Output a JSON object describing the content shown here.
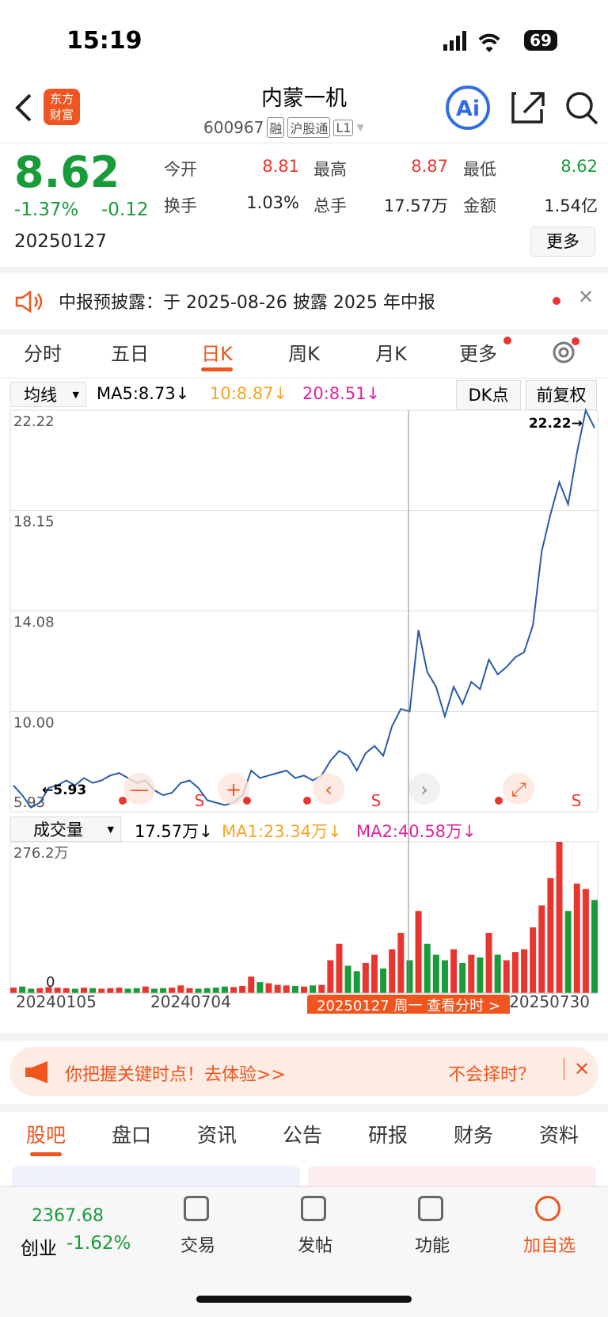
{
  "status": {
    "time": "15:19",
    "battery": "69"
  },
  "header": {
    "logo_top": "东方",
    "logo_bottom": "财富",
    "title": "内蒙一机",
    "code": "600967",
    "tags": [
      "融",
      "沪股通",
      "L1"
    ]
  },
  "quote": {
    "price": "8.62",
    "change_pct": "-1.37%",
    "change": "-0.12",
    "date": "20250127",
    "fields": [
      {
        "label": "今开",
        "value": "8.81"
      },
      {
        "label": "最高",
        "value": "8.87"
      },
      {
        "label": "最低",
        "value": "8.62"
      },
      {
        "label": "换手",
        "value": "1.03%"
      },
      {
        "label": "总手",
        "value": "17.57万"
      },
      {
        "label": "金额",
        "value": "1.54亿"
      }
    ],
    "more": "更多"
  },
  "notice": {
    "text": "中报预披露：于 2025-08-26 披露 2025 年中报"
  },
  "tabs": {
    "items": [
      "分时",
      "五日",
      "日K",
      "周K",
      "月K",
      "更多"
    ]
  },
  "indicators": {
    "selector": "均线",
    "ma5": "MA5:8.73↓",
    "ma10": "10:8.87↓",
    "ma20": "20:8.51↓",
    "dk": "DK点",
    "adjust": "前复权"
  },
  "price_chart": {
    "ylim": [
      5.93,
      22.22
    ],
    "yticks": [
      5.93,
      {
        "value": 10,
        "label": "10.00"
      },
      14.08,
      18.15,
      22.22
    ],
    "max_label": "22.22→",
    "min_label": "←5.93",
    "signals": [
      "S",
      "S",
      "S"
    ],
    "values": [
      7.0,
      6.6,
      6.1,
      6.3,
      6.9,
      7.0,
      7.2,
      7.0,
      7.3,
      7.1,
      7.2,
      7.4,
      7.5,
      7.3,
      7.1,
      7.2,
      6.8,
      6.6,
      6.7,
      7.1,
      7.2,
      6.9,
      6.4,
      6.3,
      6.2,
      6.3,
      6.6,
      7.6,
      7.3,
      7.4,
      7.5,
      7.6,
      7.3,
      7.4,
      7.2,
      7.4,
      8.0,
      8.4,
      8.2,
      7.6,
      8.3,
      8.6,
      8.2,
      9.4,
      10.1,
      10.0,
      13.3,
      11.6,
      11.0,
      9.8,
      11.0,
      10.3,
      11.2,
      10.9,
      12.1,
      11.5,
      11.8,
      12.2,
      12.4,
      13.5,
      16.5,
      18.0,
      19.3,
      18.4,
      20.5,
      22.22,
      21.5
    ]
  },
  "volume_chart": {
    "selector": "成交量",
    "vol": "17.57万↓",
    "ma1": "MA1:23.34万↓",
    "ma2": "MA2:40.58万↓",
    "ylim": [
      0,
      276.2
    ],
    "top_label": "276.2万",
    "zero_label": "0",
    "values": [
      10,
      12,
      8,
      9,
      11,
      10,
      9,
      8,
      10,
      9,
      8,
      9,
      10,
      8,
      9,
      12,
      8,
      9,
      10,
      14,
      9,
      8,
      9,
      10,
      12,
      11,
      13,
      30,
      20,
      18,
      15,
      14,
      13,
      12,
      14,
      15,
      60,
      90,
      50,
      40,
      55,
      70,
      45,
      80,
      110,
      60,
      150,
      90,
      70,
      60,
      80,
      55,
      70,
      65,
      110,
      70,
      60,
      75,
      80,
      120,
      160,
      210,
      276.2,
      150,
      200,
      190,
      170
    ]
  },
  "x_labels": [
    "20240105",
    "20240704",
    "20250730"
  ],
  "crosshair_label": "20250127 周一 查看分时 >",
  "banner": {
    "text": "你把握关键时点！去体验>>",
    "question": "不会择时？"
  },
  "section_tabs": [
    "股吧",
    "盘口",
    "资讯",
    "公告",
    "研报",
    "财务",
    "资料"
  ],
  "bottom_nav": {
    "index_value": "2367.68",
    "index_name": "创业",
    "index_change": "-1.62%",
    "items": [
      "交易",
      "发帖",
      "功能",
      "加自选"
    ]
  }
}
